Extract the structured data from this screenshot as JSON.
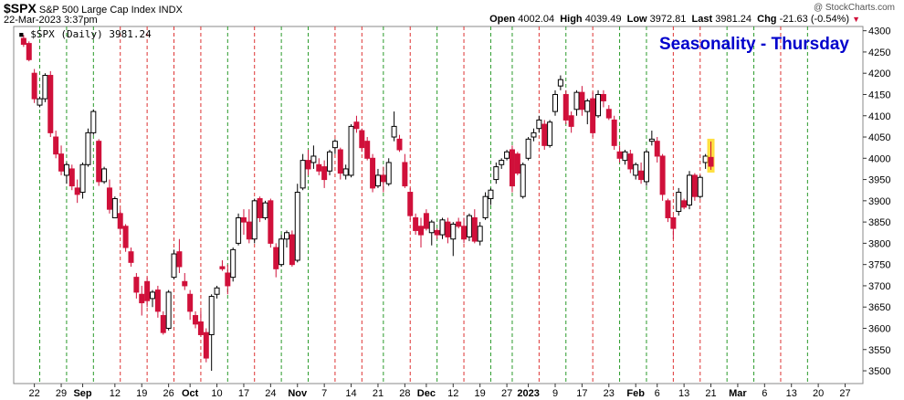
{
  "header": {
    "symbol": "$SPX",
    "name": "S&P 500 Large Cap Index",
    "exchange": "INDX",
    "datetime": "22-Mar-2023 3:37pm",
    "open_label": "Open",
    "open": "4002.04",
    "high_label": "High",
    "high": "4039.49",
    "low_label": "Low",
    "low": "3972.81",
    "last_label": "Last",
    "last": "3981.24",
    "chg_label": "Chg",
    "chg": "-21.63 (-0.54%)",
    "credit": "@ StockCharts.com"
  },
  "legend": "▪ $SPX (Daily) 3981.24",
  "colors": {
    "up": "#000000",
    "down": "#d0103a",
    "green_line": "#2a9a2a",
    "red_line": "#dd3333",
    "title": "#0000cc"
  },
  "chart_data": {
    "type": "candlestick",
    "title": "Seasonality - Thursday",
    "ylim": [
      3470,
      4310
    ],
    "y_ticks": [
      3500,
      3550,
      3600,
      3650,
      3700,
      3750,
      3800,
      3850,
      3900,
      3950,
      4000,
      4050,
      4100,
      4150,
      4200,
      4250,
      4300
    ],
    "x_labels": [
      "22",
      "29",
      "Sep",
      "12",
      "19",
      "26",
      "Oct",
      "10",
      "17",
      "24",
      "Nov",
      "7",
      "14",
      "21",
      "28",
      "Dec",
      "12",
      "19",
      "27",
      "2023",
      "9",
      "17",
      "23",
      "Feb",
      "6",
      "13",
      "21",
      "Mar",
      "6",
      "13",
      "20",
      "27"
    ],
    "x_label_slots": [
      3,
      8,
      12,
      18,
      23,
      28,
      32,
      37,
      42,
      47,
      52,
      57,
      62,
      67,
      72,
      76,
      81,
      86,
      91,
      95,
      100,
      105,
      110,
      115,
      119,
      124,
      129,
      134,
      139,
      144,
      149,
      154
    ],
    "thursday_lines": [
      {
        "slot": 4,
        "kind": "green"
      },
      {
        "slot": 9,
        "kind": "green"
      },
      {
        "slot": 14,
        "kind": "green"
      },
      {
        "slot": 19,
        "kind": "red"
      },
      {
        "slot": 24,
        "kind": "red"
      },
      {
        "slot": 29,
        "kind": "red"
      },
      {
        "slot": 34,
        "kind": "red"
      },
      {
        "slot": 39,
        "kind": "green"
      },
      {
        "slot": 44,
        "kind": "red"
      },
      {
        "slot": 49,
        "kind": "green"
      },
      {
        "slot": 54,
        "kind": "green"
      },
      {
        "slot": 59,
        "kind": "red"
      },
      {
        "slot": 64,
        "kind": "red"
      },
      {
        "slot": 68,
        "kind": "green"
      },
      {
        "slot": 73,
        "kind": "red"
      },
      {
        "slot": 78,
        "kind": "green"
      },
      {
        "slot": 83,
        "kind": "red"
      },
      {
        "slot": 88,
        "kind": "green"
      },
      {
        "slot": 92,
        "kind": "green"
      },
      {
        "slot": 97,
        "kind": "red"
      },
      {
        "slot": 102,
        "kind": "green"
      },
      {
        "slot": 107,
        "kind": "red"
      },
      {
        "slot": 112,
        "kind": "green"
      },
      {
        "slot": 117,
        "kind": "green"
      },
      {
        "slot": 122,
        "kind": "red"
      },
      {
        "slot": 127,
        "kind": "red"
      },
      {
        "slot": 132,
        "kind": "green"
      },
      {
        "slot": 137,
        "kind": "green"
      },
      {
        "slot": 142,
        "kind": "red"
      },
      {
        "slot": 147,
        "kind": "green"
      }
    ],
    "candles": [
      [
        4282,
        4290,
        4262,
        4268
      ],
      [
        4270,
        4275,
        4228,
        4232
      ],
      [
        4200,
        4210,
        4130,
        4140
      ],
      [
        4125,
        4145,
        4120,
        4140
      ],
      [
        4140,
        4200,
        4132,
        4195
      ],
      [
        4195,
        4205,
        4050,
        4060
      ],
      [
        4050,
        4065,
        4000,
        4010
      ],
      [
        4010,
        4030,
        3960,
        3970
      ],
      [
        3960,
        3990,
        3940,
        3985
      ],
      [
        3975,
        3985,
        3925,
        3935
      ],
      [
        3930,
        3950,
        3895,
        3915
      ],
      [
        3920,
        3990,
        3905,
        3985
      ],
      [
        3985,
        4070,
        3980,
        4060
      ],
      [
        4060,
        4115,
        4055,
        4110
      ],
      [
        4040,
        4045,
        3935,
        3945
      ],
      [
        3945,
        3980,
        3940,
        3975
      ],
      [
        3930,
        3950,
        3870,
        3880
      ],
      [
        3860,
        3910,
        3860,
        3905
      ],
      [
        3870,
        3880,
        3820,
        3835
      ],
      [
        3840,
        3845,
        3780,
        3790
      ],
      [
        3780,
        3790,
        3745,
        3755
      ],
      [
        3720,
        3730,
        3670,
        3685
      ],
      [
        3680,
        3700,
        3630,
        3660
      ],
      [
        3710,
        3720,
        3650,
        3665
      ],
      [
        3670,
        3690,
        3650,
        3685
      ],
      [
        3690,
        3700,
        3625,
        3640
      ],
      [
        3630,
        3640,
        3585,
        3590
      ],
      [
        3600,
        3690,
        3595,
        3685
      ],
      [
        3720,
        3785,
        3715,
        3775
      ],
      [
        3780,
        3810,
        3730,
        3745
      ],
      [
        3710,
        3730,
        3690,
        3700
      ],
      [
        3680,
        3690,
        3620,
        3640
      ],
      [
        3630,
        3640,
        3600,
        3610
      ],
      [
        3615,
        3640,
        3580,
        3585
      ],
      [
        3590,
        3600,
        3520,
        3530
      ],
      [
        3585,
        3680,
        3500,
        3675
      ],
      [
        3680,
        3700,
        3670,
        3695
      ],
      [
        3745,
        3760,
        3735,
        3740
      ],
      [
        3730,
        3750,
        3680,
        3700
      ],
      [
        3720,
        3790,
        3710,
        3785
      ],
      [
        3800,
        3870,
        3795,
        3860
      ],
      [
        3860,
        3880,
        3820,
        3850
      ],
      [
        3850,
        3880,
        3800,
        3810
      ],
      [
        3810,
        3905,
        3800,
        3900
      ],
      [
        3905,
        3910,
        3850,
        3860
      ],
      [
        3860,
        3900,
        3855,
        3895
      ],
      [
        3900,
        3905,
        3790,
        3800
      ],
      [
        3790,
        3800,
        3720,
        3740
      ],
      [
        3750,
        3820,
        3745,
        3810
      ],
      [
        3810,
        3830,
        3790,
        3825
      ],
      [
        3820,
        3830,
        3745,
        3750
      ],
      [
        3760,
        3940,
        3755,
        3920
      ],
      [
        3930,
        4010,
        3925,
        3995
      ],
      [
        3995,
        4020,
        3960,
        3975
      ],
      [
        3990,
        4030,
        3975,
        4005
      ],
      [
        3985,
        4000,
        3960,
        3970
      ],
      [
        3980,
        3995,
        3930,
        3950
      ],
      [
        3970,
        4020,
        3960,
        4015
      ],
      [
        4025,
        4045,
        4010,
        4040
      ],
      [
        4020,
        4025,
        3950,
        3965
      ],
      [
        3960,
        3985,
        3950,
        3975
      ],
      [
        3960,
        4080,
        3955,
        4075
      ],
      [
        4085,
        4100,
        4060,
        4070
      ],
      [
        4065,
        4070,
        4015,
        4025
      ],
      [
        4040,
        4050,
        3995,
        4000
      ],
      [
        4000,
        4010,
        3920,
        3930
      ],
      [
        3935,
        3975,
        3930,
        3960
      ],
      [
        3960,
        3980,
        3920,
        3945
      ],
      [
        3940,
        4000,
        3935,
        3990
      ],
      [
        4050,
        4110,
        4040,
        4075
      ],
      [
        4045,
        4055,
        4015,
        4020
      ],
      [
        3990,
        4010,
        3930,
        3935
      ],
      [
        3920,
        3930,
        3855,
        3865
      ],
      [
        3860,
        3870,
        3820,
        3830
      ],
      [
        3840,
        3860,
        3790,
        3820
      ],
      [
        3870,
        3880,
        3830,
        3835
      ],
      [
        3825,
        3855,
        3795,
        3850
      ],
      [
        3830,
        3835,
        3810,
        3820
      ],
      [
        3820,
        3860,
        3810,
        3855
      ],
      [
        3850,
        3860,
        3800,
        3815
      ],
      [
        3810,
        3850,
        3770,
        3845
      ],
      [
        3850,
        3860,
        3835,
        3840
      ],
      [
        3840,
        3860,
        3800,
        3810
      ],
      [
        3815,
        3870,
        3805,
        3865
      ],
      [
        3860,
        3880,
        3800,
        3805
      ],
      [
        3805,
        3850,
        3795,
        3840
      ],
      [
        3860,
        3920,
        3855,
        3910
      ],
      [
        3905,
        3930,
        3890,
        3925
      ],
      [
        3950,
        3990,
        3940,
        3980
      ],
      [
        3985,
        4000,
        3975,
        3995
      ],
      [
        4000,
        4020,
        3995,
        4015
      ],
      [
        4020,
        4030,
        3920,
        3935
      ],
      [
        4010,
        4015,
        3960,
        3965
      ],
      [
        3910,
        3990,
        3905,
        3985
      ],
      [
        4000,
        4050,
        3995,
        4045
      ],
      [
        4050,
        4070,
        4040,
        4060
      ],
      [
        4070,
        4100,
        4060,
        4090
      ],
      [
        4080,
        4090,
        4020,
        4030
      ],
      [
        4030,
        4090,
        4025,
        4085
      ],
      [
        4110,
        4160,
        4100,
        4150
      ],
      [
        4170,
        4195,
        4160,
        4185
      ],
      [
        4150,
        4160,
        4080,
        4090
      ],
      [
        4100,
        4110,
        4060,
        4075
      ],
      [
        4115,
        4160,
        4100,
        4155
      ],
      [
        4155,
        4170,
        4100,
        4115
      ],
      [
        4110,
        4140,
        4080,
        4135
      ],
      [
        4140,
        4155,
        4050,
        4060
      ],
      [
        4100,
        4160,
        4095,
        4150
      ],
      [
        4150,
        4160,
        4120,
        4135
      ],
      [
        4115,
        4125,
        4090,
        4095
      ],
      [
        4090,
        4100,
        4020,
        4030
      ],
      [
        4015,
        4030,
        3990,
        4000
      ],
      [
        3995,
        4020,
        3985,
        4015
      ],
      [
        4010,
        4020,
        3965,
        3975
      ],
      [
        3960,
        3990,
        3950,
        3985
      ],
      [
        3970,
        3990,
        3940,
        3950
      ],
      [
        3945,
        4020,
        3935,
        4015
      ],
      [
        4040,
        4065,
        4030,
        4045
      ],
      [
        4040,
        4050,
        3990,
        4005
      ],
      [
        4005,
        4010,
        3900,
        3915
      ],
      [
        3900,
        3905,
        3850,
        3860
      ],
      [
        3860,
        3865,
        3810,
        3835
      ],
      [
        3875,
        3930,
        3865,
        3920
      ],
      [
        3900,
        3905,
        3880,
        3885
      ],
      [
        3890,
        3970,
        3880,
        3960
      ],
      [
        3960,
        3965,
        3900,
        3910
      ],
      [
        3910,
        3960,
        3905,
        3955
      ],
      [
        3990,
        4010,
        3975,
        4005
      ],
      [
        4002.04,
        4039.49,
        3972.81,
        3981.24
      ]
    ],
    "candle_start_slot": 1,
    "highlight_last": true
  }
}
